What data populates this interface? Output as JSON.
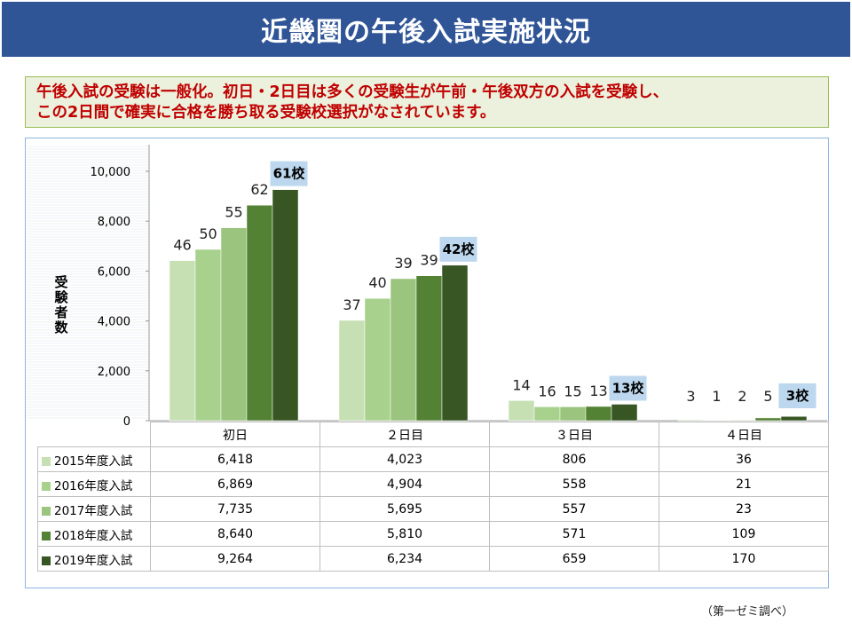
{
  "title": "近畿圏の午後入試実施状況",
  "callout": {
    "line1": "午後入試の受験は一般化。初日・2日目は多くの受験生が午前・午後双方の入試を受験し、",
    "line2": "この2日間で確実に合格を勝ち取る受験校選択がなされています。"
  },
  "source_note": "（第一ゼミ調べ）",
  "chart_data": {
    "type": "bar",
    "ylabel": "受験者数",
    "ylim": [
      0,
      10000
    ],
    "yticks": [
      0,
      2000,
      4000,
      6000,
      8000,
      10000
    ],
    "ytick_labels": [
      "0",
      "2,000",
      "4,000",
      "6,000",
      "8,000",
      "10,000"
    ],
    "categories": [
      "初日",
      "２日目",
      "３日目",
      "４日目"
    ],
    "series": [
      {
        "name": "2015年度入試",
        "color": "#c6e0b4",
        "values": [
          6418,
          4023,
          806,
          36
        ],
        "value_labels": [
          "6,418",
          "4,023",
          "806",
          "36"
        ],
        "school_counts": [
          "46",
          "37",
          "14",
          "3"
        ]
      },
      {
        "name": "2016年度入試",
        "color": "#a9d18e",
        "values": [
          6869,
          4904,
          558,
          21
        ],
        "value_labels": [
          "6,869",
          "4,904",
          "558",
          "21"
        ],
        "school_counts": [
          "50",
          "40",
          "16",
          "1"
        ]
      },
      {
        "name": "2017年度入試",
        "color": "#9bc47e",
        "values": [
          7735,
          5695,
          557,
          23
        ],
        "value_labels": [
          "7,735",
          "5,695",
          "557",
          "23"
        ],
        "school_counts": [
          "55",
          "39",
          "15",
          "2"
        ]
      },
      {
        "name": "2018年度入試",
        "color": "#548235",
        "values": [
          8640,
          5810,
          571,
          109
        ],
        "value_labels": [
          "8,640",
          "5,810",
          "571",
          "109"
        ],
        "school_counts": [
          "62",
          "39",
          "13",
          "5"
        ]
      },
      {
        "name": "2019年度入試",
        "color": "#375623",
        "values": [
          9264,
          6234,
          659,
          170
        ],
        "value_labels": [
          "9,264",
          "6,234",
          "659",
          "170"
        ],
        "school_counts": [
          "61校",
          "42校",
          "13校",
          "3校"
        ]
      }
    ]
  },
  "colors": {
    "title_bg": "#2f5597",
    "callout_text": "#c00000",
    "highlight_box": "#bdd7ee"
  }
}
